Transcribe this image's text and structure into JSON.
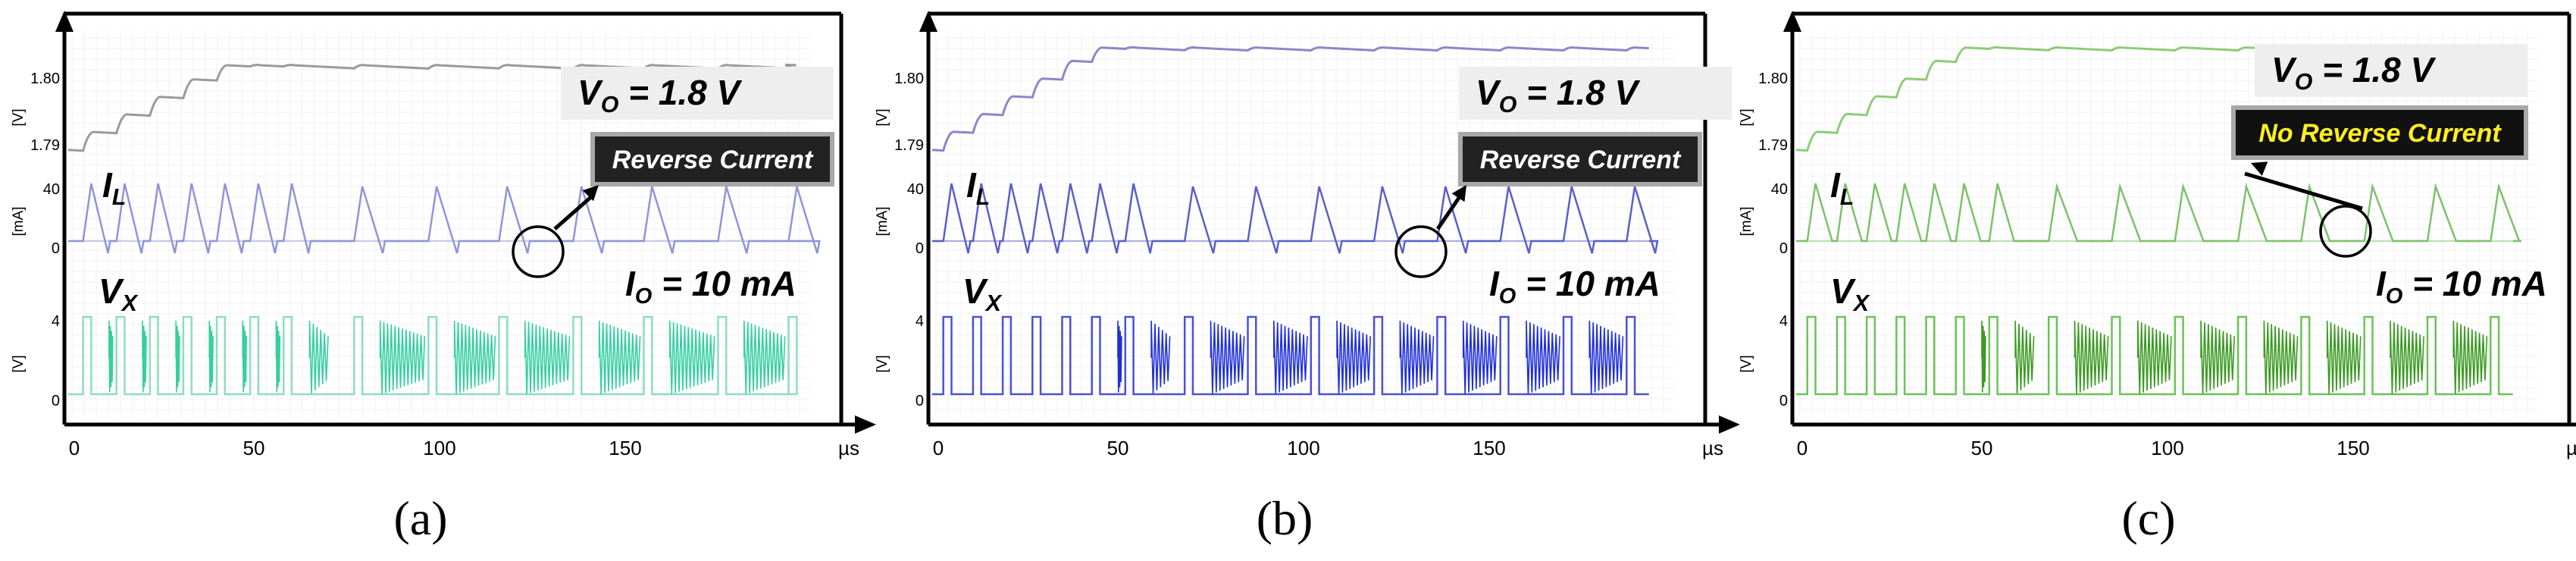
{
  "chart_data": [
    {
      "type": "line",
      "caption": "(a)",
      "xlabel": "µs",
      "xlim": [
        0,
        200
      ],
      "x_ticks": [
        "0",
        "50",
        "100",
        "150"
      ],
      "top_axis_units": "[V]",
      "vo_ticks": [
        "1.80",
        "1.79"
      ],
      "il_units": "[mA]",
      "il_ticks": [
        "40",
        "0"
      ],
      "vx_units": "[V]",
      "vx_ticks": [
        "4",
        "0"
      ],
      "vo_label": {
        "main": "V",
        "sub": "O",
        "rest": " = 1.8 V"
      },
      "il_label": {
        "main": "I",
        "sub": "L"
      },
      "vx_label": {
        "main": "V",
        "sub": "X"
      },
      "io_label": {
        "main": "I",
        "sub": "O",
        "rest": " = 10 mA"
      },
      "annotation": "Reverse Current",
      "annotation_style": "dark",
      "pulse_times_us": [
        4,
        13,
        22,
        31,
        40,
        49,
        58,
        77,
        97,
        116,
        136,
        155,
        175,
        194
      ],
      "vo_range_v": [
        1.79,
        1.8
      ],
      "il_peak_ma": 40,
      "vx_high_v": 4,
      "reverse_current": true,
      "colors": {
        "vo": "#9a9a9a",
        "il": "#8f95d6",
        "vx": "#36cfa0",
        "vx_box": "#8fdcc0",
        "box_bg": "#222222",
        "box_text": "#ffffff"
      },
      "series": [
        {
          "name": "V_O",
          "units": "V"
        },
        {
          "name": "I_L",
          "units": "mA"
        },
        {
          "name": "V_X",
          "units": "V"
        }
      ]
    },
    {
      "type": "line",
      "caption": "(b)",
      "xlabel": "µs",
      "xlim": [
        0,
        200
      ],
      "x_ticks": [
        "0",
        "50",
        "100",
        "150"
      ],
      "top_axis_units": "[V]",
      "vo_ticks": [
        "1.80",
        "1.79"
      ],
      "il_units": "[mA]",
      "il_ticks": [
        "40",
        "0"
      ],
      "vx_units": "[V]",
      "vx_ticks": [
        "4",
        "0"
      ],
      "vo_label": {
        "main": "V",
        "sub": "O",
        "rest": " = 1.8 V"
      },
      "il_label": {
        "main": "I",
        "sub": "L"
      },
      "vx_label": {
        "main": "V",
        "sub": "X"
      },
      "io_label": {
        "main": "I",
        "sub": "O",
        "rest": " = 10 mA"
      },
      "annotation": "Reverse Current",
      "annotation_style": "dark",
      "pulse_times_us": [
        3,
        11,
        19,
        27,
        35,
        43,
        52,
        68,
        85,
        102,
        119,
        136,
        153,
        170,
        187
      ],
      "vo_range_v": [
        1.79,
        1.8
      ],
      "il_peak_ma": 40,
      "vx_high_v": 4,
      "reverse_current": true,
      "colors": {
        "vo": "#8a87c9",
        "il": "#5a5fc8",
        "vx": "#1f2fd8",
        "vx_box": "#4a52d2",
        "box_bg": "#222222",
        "box_text": "#ffffff"
      },
      "series": [
        {
          "name": "V_O",
          "units": "V"
        },
        {
          "name": "I_L",
          "units": "mA"
        },
        {
          "name": "V_X",
          "units": "V"
        }
      ]
    },
    {
      "type": "line",
      "caption": "(c)",
      "xlabel": "µs",
      "xlim": [
        0,
        200
      ],
      "x_ticks": [
        "0",
        "50",
        "100",
        "150"
      ],
      "top_axis_units": "[V]",
      "vo_ticks": [
        "1.80",
        "1.79"
      ],
      "il_units": "[mA]",
      "il_ticks": [
        "40",
        "0"
      ],
      "vx_units": "[V]",
      "vx_ticks": [
        "4",
        "0"
      ],
      "vo_label": {
        "main": "V",
        "sub": "O",
        "rest": " = 1.8 V"
      },
      "il_label": {
        "main": "I",
        "sub": "L"
      },
      "vx_label": {
        "main": "V",
        "sub": "X"
      },
      "io_label": {
        "main": "I",
        "sub": "O",
        "rest": " = 10 mA"
      },
      "annotation": "No Reverse Current",
      "annotation_style": "yellow",
      "pulse_times_us": [
        3,
        11,
        19,
        27,
        35,
        43,
        52,
        68,
        85,
        102,
        119,
        136,
        153,
        170,
        187
      ],
      "vo_range_v": [
        1.79,
        1.8
      ],
      "il_peak_ma": 40,
      "vx_high_v": 4,
      "reverse_current": false,
      "colors": {
        "vo": "#8ccc78",
        "il": "#7cc26a",
        "vx": "#3c9a24",
        "vx_box": "#6cc258",
        "box_bg": "#111111",
        "box_text": "#ffee22"
      },
      "series": [
        {
          "name": "V_O",
          "units": "V"
        },
        {
          "name": "I_L",
          "units": "mA"
        },
        {
          "name": "V_X",
          "units": "V"
        }
      ]
    }
  ]
}
